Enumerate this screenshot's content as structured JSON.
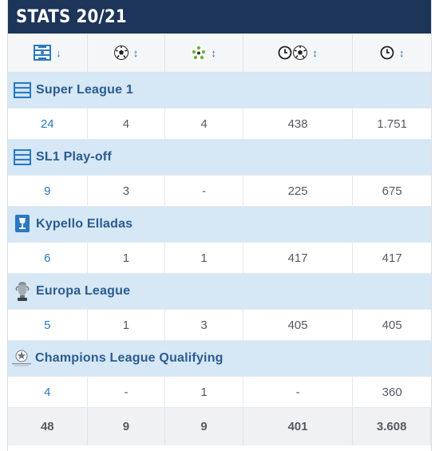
{
  "title": "STATS 20/21",
  "header": {
    "icons": [
      "pitch-icon",
      "ball-icon",
      "assist-icon",
      "clock-ball-icon",
      "clock-icon"
    ],
    "sort_arrows": [
      "↓",
      "↕",
      "↕",
      "↕",
      "↕"
    ]
  },
  "competitions": [
    {
      "name": "Super League 1",
      "icon": "league-logo-icon",
      "values": [
        "24",
        "4",
        "4",
        "438",
        "1.751"
      ]
    },
    {
      "name": "SL1 Play-off",
      "icon": "league-logo-icon",
      "values": [
        "9",
        "3",
        "-",
        "225",
        "675"
      ]
    },
    {
      "name": "Kypello Elladas",
      "icon": "cup-logo-icon",
      "values": [
        "6",
        "1",
        "1",
        "417",
        "417"
      ]
    },
    {
      "name": "Europa League",
      "icon": "europa-trophy-icon",
      "values": [
        "5",
        "1",
        "3",
        "405",
        "405"
      ]
    },
    {
      "name": "Champions League Qualifying",
      "icon": "champions-league-icon",
      "values": [
        "4",
        "-",
        "1",
        "-",
        "360"
      ]
    }
  ],
  "totals": [
    "48",
    "9",
    "9",
    "401",
    "3.608"
  ],
  "colors": {
    "title_bg": "#1c3558",
    "comp_row_bg": "#d6e7f5",
    "link": "#2a78c2",
    "comp_name": "#2a5c8f"
  }
}
